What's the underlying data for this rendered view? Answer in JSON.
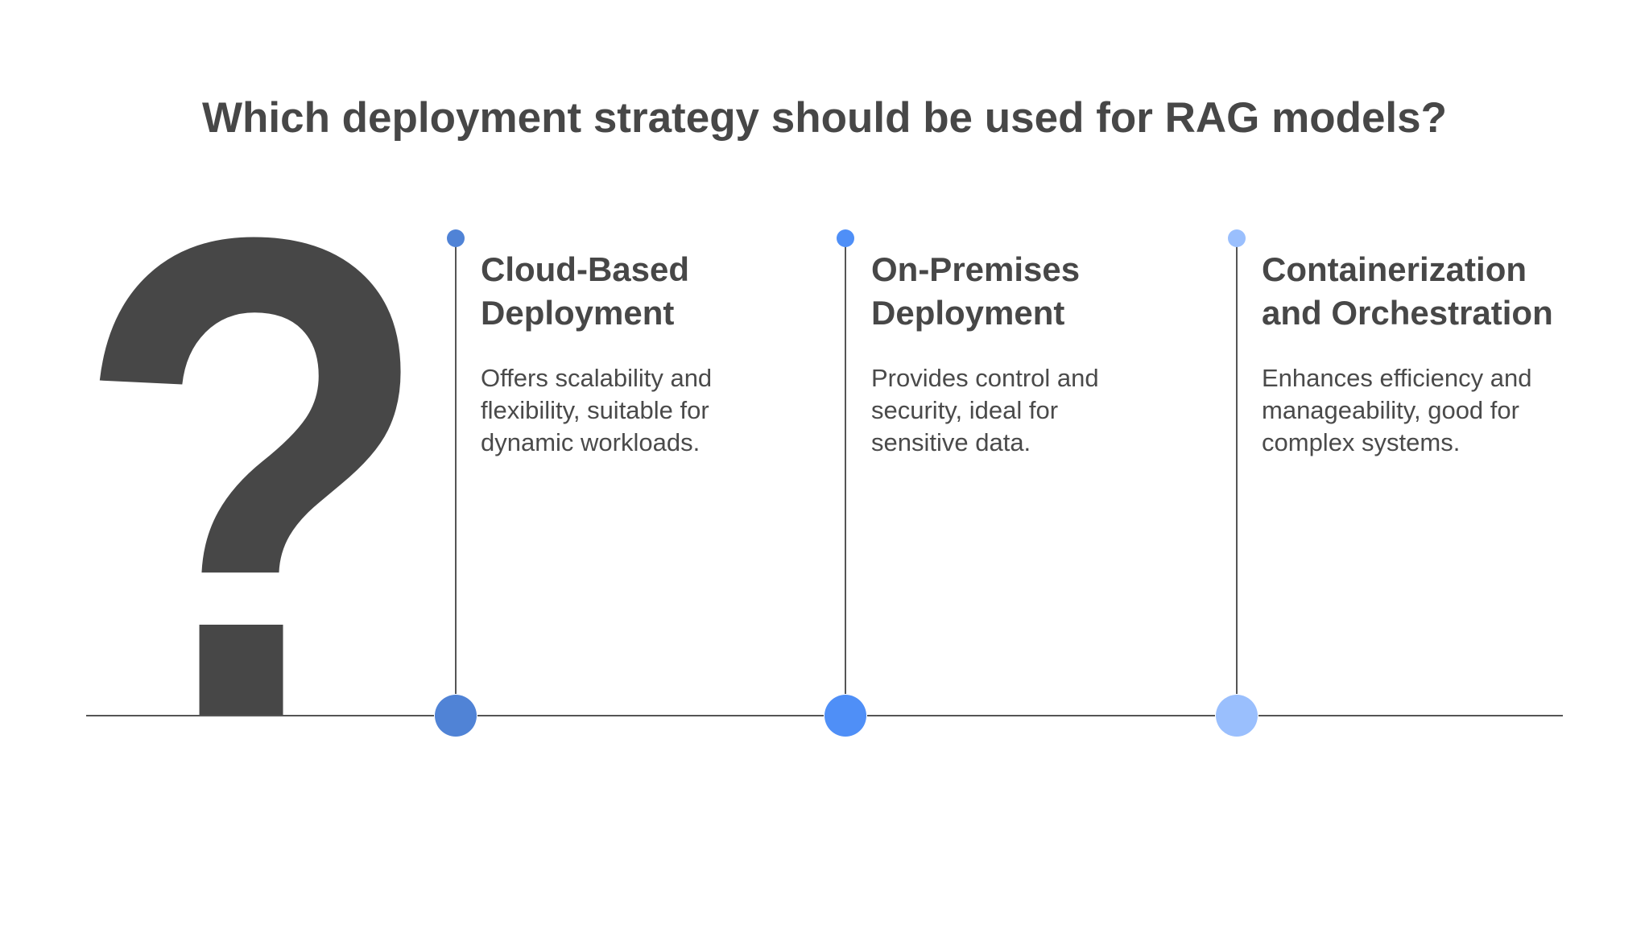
{
  "title": "Which deployment strategy should be used for RAG models?",
  "icon": "question-mark-icon",
  "options": [
    {
      "heading_line1": "Cloud-Based",
      "heading_line2": "Deployment",
      "description": "Offers scalability and flexibility, suitable for dynamic workloads.",
      "color": "#5083d6"
    },
    {
      "heading_line1": "On-Premises",
      "heading_line2": "Deployment",
      "description": "Provides control and security, ideal for sensitive data.",
      "color": "#4f8ff7"
    },
    {
      "heading_line1": "Containerization",
      "heading_line2": "and Orchestration",
      "description": "Enhances efficiency and manageability, good for complex systems.",
      "color": "#9abffd"
    }
  ]
}
